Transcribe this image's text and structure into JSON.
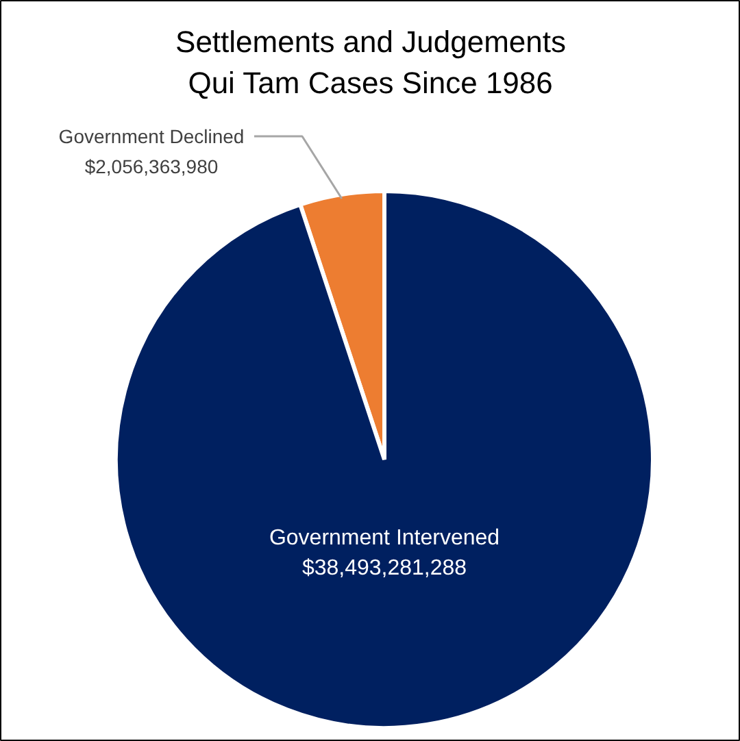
{
  "chart_data": {
    "type": "pie",
    "title": "Settlements and Judgements\nQui Tam Cases Since 1986",
    "categories": [
      "Government Declined",
      "Government Intervened"
    ],
    "values": [
      2056363980,
      38493281288
    ],
    "value_labels": [
      "$2,056,363,980",
      "$38,493,281,288"
    ],
    "colors": [
      "#ed7d31",
      "#002060"
    ]
  }
}
